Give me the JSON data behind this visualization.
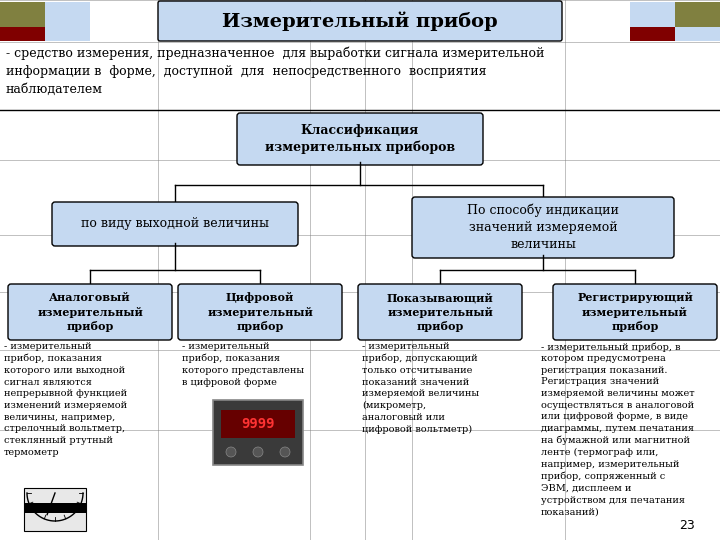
{
  "title": "Измерительный прибор",
  "title_fontsize": 14,
  "subtitle": "- средство измерения, предназначенное  для выработки сигнала измерительной\nинформации в  форме,  доступной  для  непосредственного  восприятия\nнаблюдателем",
  "subtitle_fontsize": 9,
  "bg_color": "#ffffff",
  "title_box_color": "#c5d9f1",
  "class_box_color": "#c5d9f1",
  "class_box_text": "Классификация\nизмерительных приборов",
  "sub1_box_text": "по виду выходной величины",
  "sub2_box_text": "По способу индикации\nзначений измеряемой\nвеличины",
  "leaf_boxes": [
    {
      "title": "Аналоговый\nизмерительный\nприбор",
      "text": "- измерительный\nприбор, показания\nкоторого или выходной\nсигнал являются\nнепрерывной функцией\nизменений измеряемой\nвеличины, например,\nстрелочный вольтметр,\nстеклянный ртутный\nтермометр"
    },
    {
      "title": "Цифровой\nизмерительный\nприбор",
      "text": "- измерительный\nприбор, показания\nкоторого представлены\nв цифровой форме"
    },
    {
      "title": "Показывающий\nизмерительный\nприбор",
      "text": "- измерительный\nприбор, допускающий\nтолько отсчитывание\nпоказаний значений\nизмеряемой величины\n(микрометр,\nаналоговый или\nцифровой вольтметр)"
    },
    {
      "title": "Регистрирующий\nизмерительный\nприбор",
      "text": "- измерительный прибор, в\nкотором предусмотрена\nрегистрация показаний.\nРегистрация значений\nизмеряемой величины может\nосуществляться в аналоговой\nили цифровой форме, в виде\nдиаграммы, путем печатания\nна бумажной или магнитной\nленте (термограф или,\nнапример, измерительный\nприбор, сопряженный с\nЭВМ, дисплеем и\nустройством для печатания\nпоказаний)"
    }
  ],
  "page_number": "23",
  "box_edge_color": "#000000",
  "line_color": "#000000",
  "text_color": "#000000",
  "grid_color": "#808080",
  "olive_color": "#808040",
  "darkred_color": "#800000"
}
